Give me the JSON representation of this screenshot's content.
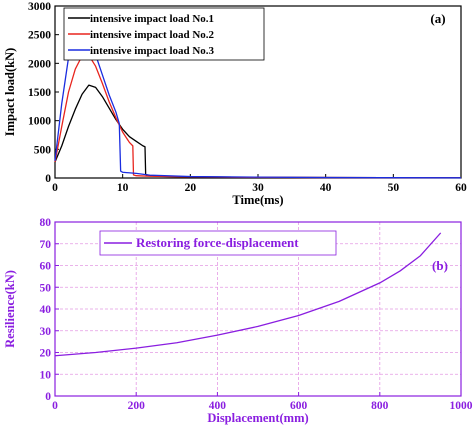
{
  "chart_data": [
    {
      "type": "line",
      "panel_label": "(a)",
      "xlabel": "Time(ms)",
      "ylabel": "Impact load(kN)",
      "xlim": [
        0,
        60
      ],
      "ylim": [
        0,
        3000
      ],
      "xticks": [
        0,
        10,
        20,
        30,
        40,
        50,
        60
      ],
      "yticks": [
        0,
        500,
        1000,
        1500,
        2000,
        2500,
        3000
      ],
      "grid": false,
      "legend_position": "top-left",
      "series": [
        {
          "name": "intensive impact load No.1",
          "color": "#000000",
          "points": [
            [
              0,
              280
            ],
            [
              1,
              560
            ],
            [
              2,
              900
            ],
            [
              3,
              1200
            ],
            [
              4,
              1460
            ],
            [
              5,
              1620
            ],
            [
              6,
              1580
            ],
            [
              7,
              1420
            ],
            [
              8,
              1220
            ],
            [
              9,
              1020
            ],
            [
              10,
              850
            ],
            [
              11,
              720
            ],
            [
              12,
              640
            ],
            [
              13,
              560
            ],
            [
              13.3,
              545
            ],
            [
              13.4,
              60
            ],
            [
              14,
              40
            ],
            [
              16,
              28
            ],
            [
              20,
              20
            ],
            [
              30,
              12
            ],
            [
              40,
              8
            ],
            [
              50,
              5
            ],
            [
              60,
              3
            ]
          ]
        },
        {
          "name": "intensive impact load No.2",
          "color": "#e8251e",
          "points": [
            [
              0,
              280
            ],
            [
              1,
              900
            ],
            [
              2,
              1500
            ],
            [
              3,
              1900
            ],
            [
              4,
              2130
            ],
            [
              4.5,
              2170
            ],
            [
              5,
              2140
            ],
            [
              6,
              1950
            ],
            [
              7,
              1650
            ],
            [
              8,
              1330
            ],
            [
              9,
              1050
            ],
            [
              10,
              800
            ],
            [
              11,
              620
            ],
            [
              11.5,
              560
            ],
            [
              11.6,
              55
            ],
            [
              12,
              40
            ],
            [
              14,
              30
            ],
            [
              20,
              20
            ],
            [
              30,
              12
            ],
            [
              40,
              8
            ],
            [
              50,
              5
            ],
            [
              60,
              3
            ]
          ]
        },
        {
          "name": "intensive impact load No.3",
          "color": "#1a2de0",
          "points": [
            [
              0,
              300
            ],
            [
              1,
              1300
            ],
            [
              2,
              2100
            ],
            [
              3,
              2600
            ],
            [
              3.7,
              2700
            ],
            [
              4.5,
              2630
            ],
            [
              5,
              2500
            ],
            [
              6,
              2150
            ],
            [
              7,
              1800
            ],
            [
              8,
              1450
            ],
            [
              9,
              1150
            ],
            [
              9.5,
              950
            ],
            [
              9.7,
              120
            ],
            [
              10,
              100
            ],
            [
              12,
              80
            ],
            [
              14,
              50
            ],
            [
              20,
              25
            ],
            [
              30,
              15
            ],
            [
              40,
              8
            ],
            [
              50,
              5
            ],
            [
              60,
              3
            ]
          ]
        }
      ]
    },
    {
      "type": "line",
      "panel_label": "(b)",
      "xlabel": "Displacement(mm)",
      "ylabel": "Resilience(kN)",
      "xlim": [
        0,
        1000
      ],
      "ylim": [
        0,
        80
      ],
      "xticks": [
        0,
        200,
        400,
        600,
        800,
        1000
      ],
      "yticks": [
        0,
        10,
        20,
        30,
        40,
        50,
        60,
        70,
        80
      ],
      "grid": true,
      "legend_position": "top-left",
      "series": [
        {
          "name": "Restoring force-displacement",
          "color": "#8a1ee0",
          "points": [
            [
              0,
              18.5
            ],
            [
              100,
              20
            ],
            [
              200,
              22
            ],
            [
              300,
              24.5
            ],
            [
              400,
              28
            ],
            [
              500,
              32
            ],
            [
              600,
              37
            ],
            [
              700,
              43.5
            ],
            [
              800,
              52
            ],
            [
              850,
              57.5
            ],
            [
              900,
              64.5
            ],
            [
              950,
              75
            ]
          ]
        }
      ]
    }
  ]
}
